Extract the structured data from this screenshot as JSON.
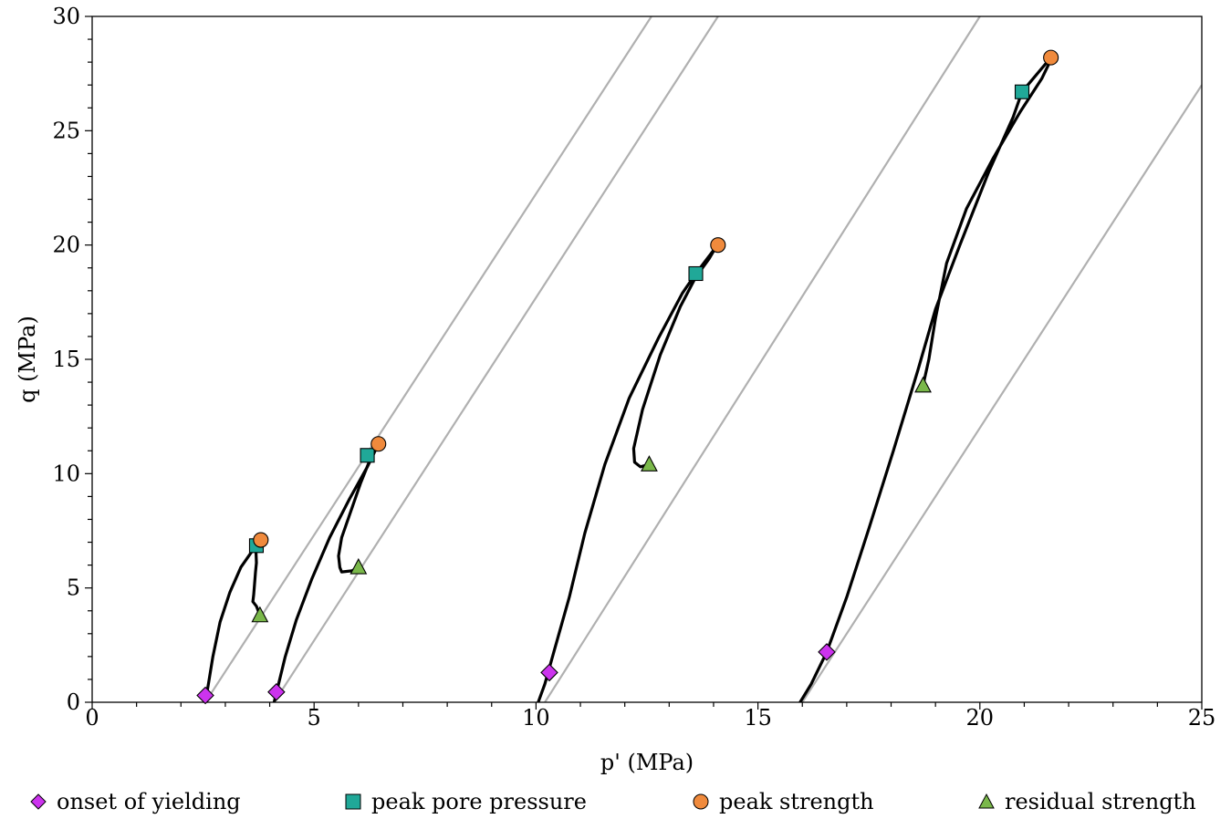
{
  "chart_data": {
    "type": "scatter",
    "title": "",
    "xlabel": "p' (MPa)",
    "ylabel": "q (MPa)",
    "xlim": [
      0,
      25
    ],
    "ylim": [
      0,
      30
    ],
    "xticks": [
      "0",
      "5",
      "10",
      "15",
      "20",
      "25"
    ],
    "yticks": [
      "0",
      "5",
      "10",
      "15",
      "20",
      "25",
      "30"
    ],
    "grid": false,
    "legend_position": "bottom",
    "colors": {
      "onset_of_yielding": "#cc33ee",
      "peak_pore_pressure": "#20a898",
      "peak_strength": "#f08a3c",
      "residual_strength": "#7ab84a",
      "stress_path": "#000000",
      "reference_lines": "#b0b0b0"
    },
    "reference_lines": [
      {
        "x1": 2.55,
        "y1": 0,
        "x2": 12.6,
        "y2": 30
      },
      {
        "x1": 4.1,
        "y1": 0,
        "x2": 14.1,
        "y2": 30
      },
      {
        "x1": 10.2,
        "y1": 0,
        "x2": 20.0,
        "y2": 30
      },
      {
        "x1": 16.0,
        "y1": 0,
        "x2": 25.0,
        "y2": 27.0
      }
    ],
    "stress_paths": [
      {
        "points": [
          [
            2.55,
            0
          ],
          [
            2.62,
            0.8
          ],
          [
            2.72,
            2.0
          ],
          [
            2.88,
            3.5
          ],
          [
            3.1,
            4.8
          ],
          [
            3.35,
            5.9
          ],
          [
            3.6,
            6.6
          ],
          [
            3.7,
            6.85
          ],
          [
            3.77,
            7.05
          ],
          [
            3.74,
            6.9
          ],
          [
            3.69,
            6.6
          ],
          [
            3.7,
            6.1
          ],
          [
            3.68,
            5.7
          ],
          [
            3.66,
            5.2
          ],
          [
            3.64,
            4.7
          ],
          [
            3.62,
            4.4
          ],
          [
            3.7,
            4.2
          ],
          [
            3.78,
            3.8
          ]
        ]
      },
      {
        "points": [
          [
            4.1,
            0
          ],
          [
            4.2,
            0.8
          ],
          [
            4.35,
            2.0
          ],
          [
            4.6,
            3.6
          ],
          [
            4.95,
            5.4
          ],
          [
            5.35,
            7.2
          ],
          [
            5.8,
            8.9
          ],
          [
            6.2,
            10.3
          ],
          [
            6.35,
            10.9
          ],
          [
            6.45,
            11.3
          ],
          [
            6.3,
            10.8
          ],
          [
            6.05,
            9.6
          ],
          [
            5.8,
            8.2
          ],
          [
            5.62,
            7.2
          ],
          [
            5.55,
            6.4
          ],
          [
            5.58,
            5.9
          ],
          [
            5.62,
            5.7
          ],
          [
            5.85,
            5.75
          ],
          [
            6.0,
            5.9
          ]
        ]
      },
      {
        "points": [
          [
            10.05,
            0
          ],
          [
            10.2,
            0.8
          ],
          [
            10.4,
            2.2
          ],
          [
            10.75,
            4.6
          ],
          [
            11.1,
            7.4
          ],
          [
            11.55,
            10.4
          ],
          [
            12.1,
            13.3
          ],
          [
            12.75,
            15.9
          ],
          [
            13.3,
            17.9
          ],
          [
            13.6,
            18.75
          ],
          [
            14.05,
            19.9
          ],
          [
            13.9,
            19.4
          ],
          [
            13.6,
            18.6
          ],
          [
            13.25,
            17.3
          ],
          [
            12.8,
            15.2
          ],
          [
            12.4,
            12.8
          ],
          [
            12.2,
            11.1
          ],
          [
            12.22,
            10.5
          ],
          [
            12.35,
            10.3
          ],
          [
            12.55,
            10.4
          ]
        ]
      },
      {
        "points": [
          [
            15.95,
            0
          ],
          [
            16.2,
            0.8
          ],
          [
            16.55,
            2.2
          ],
          [
            17.0,
            4.6
          ],
          [
            17.5,
            7.6
          ],
          [
            18.05,
            11.0
          ],
          [
            18.6,
            14.5
          ],
          [
            19.0,
            17.2
          ],
          [
            19.55,
            20.0
          ],
          [
            20.2,
            23.2
          ],
          [
            20.75,
            25.6
          ],
          [
            20.95,
            26.7
          ],
          [
            21.6,
            28.2
          ],
          [
            21.55,
            27.9
          ],
          [
            21.4,
            27.3
          ],
          [
            20.9,
            25.8
          ],
          [
            20.3,
            23.8
          ],
          [
            19.7,
            21.6
          ],
          [
            19.25,
            19.2
          ],
          [
            19.0,
            16.8
          ],
          [
            18.85,
            15.0
          ],
          [
            18.72,
            13.85
          ]
        ]
      }
    ],
    "series": [
      {
        "name": "onset of yielding",
        "marker": "diamond",
        "points": [
          [
            2.55,
            0.3
          ],
          [
            4.15,
            0.45
          ],
          [
            10.3,
            1.3
          ],
          [
            16.55,
            2.2
          ]
        ]
      },
      {
        "name": "peak pore pressure",
        "marker": "square",
        "points": [
          [
            3.7,
            6.85
          ],
          [
            6.2,
            10.8
          ],
          [
            13.6,
            18.75
          ],
          [
            20.95,
            26.7
          ]
        ]
      },
      {
        "name": "peak strength",
        "marker": "circle",
        "points": [
          [
            3.8,
            7.1
          ],
          [
            6.45,
            11.3
          ],
          [
            14.1,
            20.0
          ],
          [
            21.6,
            28.2
          ]
        ]
      },
      {
        "name": "residual strength",
        "marker": "triangle",
        "points": [
          [
            3.78,
            3.8
          ],
          [
            6.0,
            5.9
          ],
          [
            12.55,
            10.4
          ],
          [
            18.72,
            13.85
          ]
        ]
      }
    ]
  },
  "legend": {
    "onset_of_yielding": "onset of yielding",
    "peak_pore_pressure": "peak pore pressure",
    "peak_strength": "peak strength",
    "residual_strength": "residual strength"
  }
}
